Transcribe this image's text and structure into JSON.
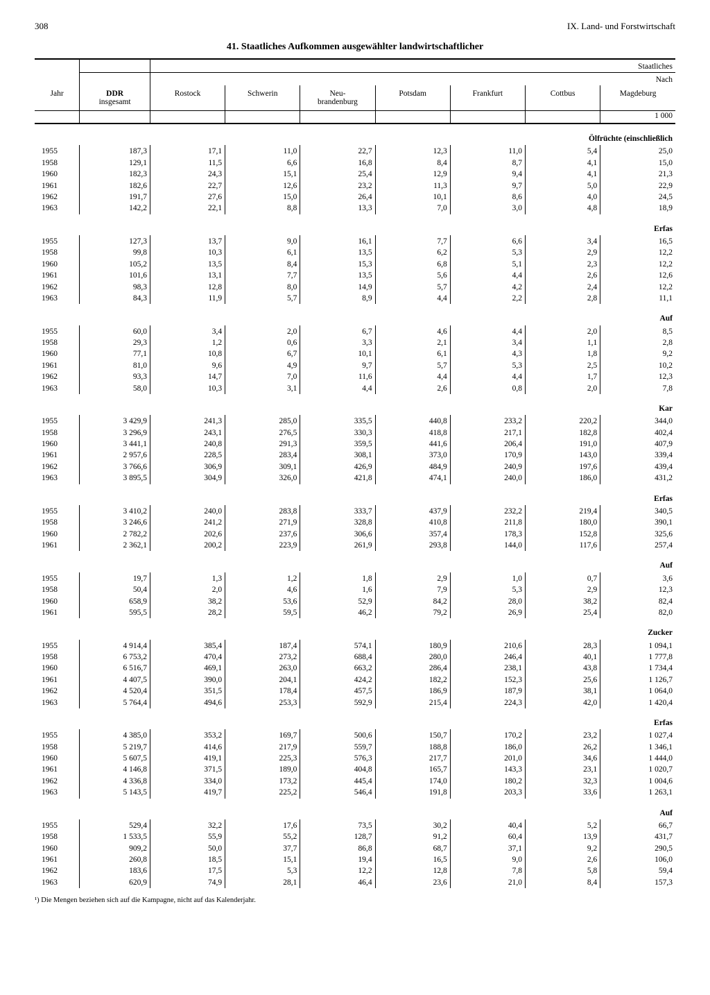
{
  "page_number": "308",
  "chapter": "IX. Land- und Forstwirtschaft",
  "title": "41. Staatliches Aufkommen ausgewählter landwirtschaftlicher",
  "super_right": "Staatliches",
  "super_right2": "Nach",
  "unit": "1 000",
  "columns": {
    "year": "Jahr",
    "ddr": "DDR\ninsgesamt",
    "regions": [
      "Rostock",
      "Schwerin",
      "Neu-\nbrandenburg",
      "Potsdam",
      "Frankfurt",
      "Cottbus",
      "Magdeburg"
    ]
  },
  "sections": [
    {
      "label": "Ölfrüchte (einschließlich",
      "rows": [
        [
          "1955",
          "187,3",
          "17,1",
          "11,0",
          "22,7",
          "12,3",
          "11,0",
          "5,4",
          "25,0"
        ],
        [
          "1958",
          "129,1",
          "11,5",
          "6,6",
          "16,8",
          "8,4",
          "8,7",
          "4,1",
          "15,0"
        ],
        [
          "1960",
          "182,3",
          "24,3",
          "15,1",
          "25,4",
          "12,9",
          "9,4",
          "4,1",
          "21,3"
        ],
        [
          "1961",
          "182,6",
          "22,7",
          "12,6",
          "23,2",
          "11,3",
          "9,7",
          "5,0",
          "22,9"
        ],
        [
          "1962",
          "191,7",
          "27,6",
          "15,0",
          "26,4",
          "10,1",
          "8,6",
          "4,0",
          "24,5"
        ],
        [
          "1963",
          "142,2",
          "22,1",
          "8,8",
          "13,3",
          "7,0",
          "3,0",
          "4,8",
          "18,9"
        ]
      ]
    },
    {
      "label": "Erfas",
      "rows": [
        [
          "1955",
          "127,3",
          "13,7",
          "9,0",
          "16,1",
          "7,7",
          "6,6",
          "3,4",
          "16,5"
        ],
        [
          "1958",
          "99,8",
          "10,3",
          "6,1",
          "13,5",
          "6,2",
          "5,3",
          "2,9",
          "12,2"
        ],
        [
          "1960",
          "105,2",
          "13,5",
          "8,4",
          "15,3",
          "6,8",
          "5,1",
          "2,3",
          "12,2"
        ],
        [
          "1961",
          "101,6",
          "13,1",
          "7,7",
          "13,5",
          "5,6",
          "4,4",
          "2,6",
          "12,6"
        ],
        [
          "1962",
          "98,3",
          "12,8",
          "8,0",
          "14,9",
          "5,7",
          "4,2",
          "2,4",
          "12,2"
        ],
        [
          "1963",
          "84,3",
          "11,9",
          "5,7",
          "8,9",
          "4,4",
          "2,2",
          "2,8",
          "11,1"
        ]
      ]
    },
    {
      "label": "Auf",
      "rows": [
        [
          "1955",
          "60,0",
          "3,4",
          "2,0",
          "6,7",
          "4,6",
          "4,4",
          "2,0",
          "8,5"
        ],
        [
          "1958",
          "29,3",
          "1,2",
          "0,6",
          "3,3",
          "2,1",
          "3,4",
          "1,1",
          "2,8"
        ],
        [
          "1960",
          "77,1",
          "10,8",
          "6,7",
          "10,1",
          "6,1",
          "4,3",
          "1,8",
          "9,2"
        ],
        [
          "1961",
          "81,0",
          "9,6",
          "4,9",
          "9,7",
          "5,7",
          "5,3",
          "2,5",
          "10,2"
        ],
        [
          "1962",
          "93,3",
          "14,7",
          "7,0",
          "11,6",
          "4,4",
          "4,4",
          "1,7",
          "12,3"
        ],
        [
          "1963",
          "58,0",
          "10,3",
          "3,1",
          "4,4",
          "2,6",
          "0,8",
          "2,0",
          "7,8"
        ]
      ]
    },
    {
      "label": "Kar",
      "rows": [
        [
          "1955",
          "3 429,9",
          "241,3",
          "285,0",
          "335,5",
          "440,8",
          "233,2",
          "220,2",
          "344,0"
        ],
        [
          "1958",
          "3 296,9",
          "243,1",
          "276,5",
          "330,3",
          "418,8",
          "217,1",
          "182,8",
          "402,4"
        ],
        [
          "1960",
          "3 441,1",
          "240,8",
          "291,3",
          "359,5",
          "441,6",
          "206,4",
          "191,0",
          "407,9"
        ],
        [
          "1961",
          "2 957,6",
          "228,5",
          "283,4",
          "308,1",
          "373,0",
          "170,9",
          "143,0",
          "339,4"
        ],
        [
          "1962",
          "3 766,6",
          "306,9",
          "309,1",
          "426,9",
          "484,9",
          "240,9",
          "197,6",
          "439,4"
        ],
        [
          "1963",
          "3 895,5",
          "304,9",
          "326,0",
          "421,8",
          "474,1",
          "240,0",
          "186,0",
          "431,2"
        ]
      ]
    },
    {
      "label": "Erfas",
      "rows": [
        [
          "1955",
          "3 410,2",
          "240,0",
          "283,8",
          "333,7",
          "437,9",
          "232,2",
          "219,4",
          "340,5"
        ],
        [
          "1958",
          "3 246,6",
          "241,2",
          "271,9",
          "328,8",
          "410,8",
          "211,8",
          "180,0",
          "390,1"
        ],
        [
          "1960",
          "2 782,2",
          "202,6",
          "237,6",
          "306,6",
          "357,4",
          "178,3",
          "152,8",
          "325,6"
        ],
        [
          "1961",
          "2 362,1",
          "200,2",
          "223,9",
          "261,9",
          "293,8",
          "144,0",
          "117,6",
          "257,4"
        ]
      ]
    },
    {
      "label": "Auf",
      "rows": [
        [
          "1955",
          "19,7",
          "1,3",
          "1,2",
          "1,8",
          "2,9",
          "1,0",
          "0,7",
          "3,6"
        ],
        [
          "1958",
          "50,4",
          "2,0",
          "4,6",
          "1,6",
          "7,9",
          "5,3",
          "2,9",
          "12,3"
        ],
        [
          "1960",
          "658,9",
          "38,2",
          "53,6",
          "52,9",
          "84,2",
          "28,0",
          "38,2",
          "82,4"
        ],
        [
          "1961",
          "595,5",
          "28,2",
          "59,5",
          "46,2",
          "79,2",
          "26,9",
          "25,4",
          "82,0"
        ]
      ]
    },
    {
      "label": "Zucker",
      "rows": [
        [
          "1955",
          "4 914,4",
          "385,4",
          "187,4",
          "574,1",
          "180,9",
          "210,6",
          "28,3",
          "1 094,1"
        ],
        [
          "1958",
          "6 753,2",
          "470,4",
          "273,2",
          "688,4",
          "280,0",
          "246,4",
          "40,1",
          "1 777,8"
        ],
        [
          "1960",
          "6 516,7",
          "469,1",
          "263,0",
          "663,2",
          "286,4",
          "238,1",
          "43,8",
          "1 734,4"
        ],
        [
          "1961",
          "4 407,5",
          "390,0",
          "204,1",
          "424,2",
          "182,2",
          "152,3",
          "25,6",
          "1 126,7"
        ],
        [
          "1962",
          "4 520,4",
          "351,5",
          "178,4",
          "457,5",
          "186,9",
          "187,9",
          "38,1",
          "1 064,0"
        ],
        [
          "1963",
          "5 764,4",
          "494,6",
          "253,3",
          "592,9",
          "215,4",
          "224,3",
          "42,0",
          "1 420,4"
        ]
      ]
    },
    {
      "label": "Erfas",
      "rows": [
        [
          "1955",
          "4 385,0",
          "353,2",
          "169,7",
          "500,6",
          "150,7",
          "170,2",
          "23,2",
          "1 027,4"
        ],
        [
          "1958",
          "5 219,7",
          "414,6",
          "217,9",
          "559,7",
          "188,8",
          "186,0",
          "26,2",
          "1 346,1"
        ],
        [
          "1960",
          "5 607,5",
          "419,1",
          "225,3",
          "576,3",
          "217,7",
          "201,0",
          "34,6",
          "1 444,0"
        ],
        [
          "1961",
          "4 146,8",
          "371,5",
          "189,0",
          "404,8",
          "165,7",
          "143,3",
          "23,1",
          "1 020,7"
        ],
        [
          "1962",
          "4 336,8",
          "334,0",
          "173,2",
          "445,4",
          "174,0",
          "180,2",
          "32,3",
          "1 004,6"
        ],
        [
          "1963",
          "5 143,5",
          "419,7",
          "225,2",
          "546,4",
          "191,8",
          "203,3",
          "33,6",
          "1 263,1"
        ]
      ]
    },
    {
      "label": "Auf",
      "rows": [
        [
          "1955",
          "529,4",
          "32,2",
          "17,6",
          "73,5",
          "30,2",
          "40,4",
          "5,2",
          "66,7"
        ],
        [
          "1958",
          "1 533,5",
          "55,9",
          "55,2",
          "128,7",
          "91,2",
          "60,4",
          "13,9",
          "431,7"
        ],
        [
          "1960",
          "909,2",
          "50,0",
          "37,7",
          "86,8",
          "68,7",
          "37,1",
          "9,2",
          "290,5"
        ],
        [
          "1961",
          "260,8",
          "18,5",
          "15,1",
          "19,4",
          "16,5",
          "9,0",
          "2,6",
          "106,0"
        ],
        [
          "1962",
          "183,6",
          "17,5",
          "5,3",
          "12,2",
          "12,8",
          "7,8",
          "5,8",
          "59,4"
        ],
        [
          "1963",
          "620,9",
          "74,9",
          "28,1",
          "46,4",
          "23,6",
          "21,0",
          "8,4",
          "157,3"
        ]
      ]
    }
  ],
  "footnote": "¹) Die Mengen beziehen sich auf die Kampagne, nicht auf das Kalenderjahr."
}
